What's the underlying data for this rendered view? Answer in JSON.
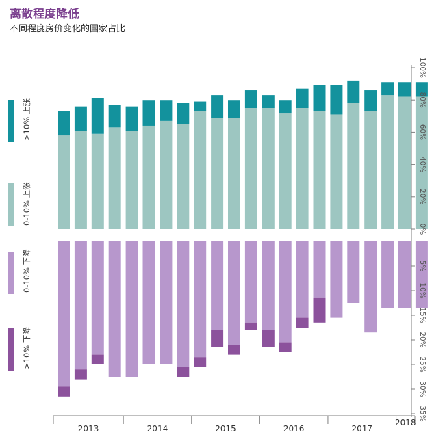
{
  "title": "离散程度降低",
  "subtitle": "不同程度房价变化的国家占比",
  "colors": {
    "rise_0_10": "#9dc6c1",
    "rise_gt10": "#13929d",
    "fall_0_10": "#b797cc",
    "fall_gt10": "#8c529c",
    "axis": "#7f7f7f",
    "title": "#7a3f8e"
  },
  "legend": {
    "rise_gt10": {
      "range": ">10%",
      "dir": "上涨"
    },
    "rise_0_10": {
      "range": "0-10%",
      "dir": "上涨"
    },
    "fall_0_10": {
      "range": "0-10%",
      "dir": "下降"
    },
    "fall_gt10": {
      "range": ">10%",
      "dir": "下降"
    }
  },
  "chart_data": {
    "type": "bar",
    "stacked": true,
    "title": "离散程度降低",
    "subtitle": "不同程度房价变化的国家占比",
    "x_labels": [
      "2013",
      "2014",
      "2015",
      "2016",
      "2017",
      "2018"
    ],
    "x_label_groups": [
      4,
      4,
      4,
      4,
      4,
      2
    ],
    "bar_count": 22,
    "y_ticks_upper": [
      "0%",
      "20%",
      "40%",
      "60%",
      "80%",
      "100%"
    ],
    "y_ticks_lower": [
      "0%",
      "5%",
      "10%",
      "15%",
      "20%",
      "25%",
      "30%",
      "35%"
    ],
    "ylim_upper": [
      0,
      100
    ],
    "ylim_lower": [
      0,
      35
    ],
    "series": [
      {
        "name": "0-10% 上涨",
        "values": [
          58,
          61,
          59,
          63,
          61,
          64,
          67,
          65,
          73,
          69,
          69,
          75,
          75,
          72,
          75,
          73,
          71,
          78,
          73,
          83,
          82,
          82
        ]
      },
      {
        "name": ">10% 上涨",
        "values": [
          15,
          15,
          22,
          14,
          15,
          16,
          13,
          13,
          6,
          14,
          11,
          11,
          8,
          8,
          12,
          16,
          18,
          14,
          13,
          8,
          9,
          9
        ]
      },
      {
        "name": "0-10% 下降",
        "values": [
          29.5,
          26,
          23,
          27.5,
          27.5,
          25,
          25,
          25.5,
          23.5,
          18,
          21,
          16.5,
          18,
          20.5,
          15.5,
          11.5,
          15.5,
          12.5,
          18.5,
          13.5,
          13.5,
          13.5
        ]
      },
      {
        "name": ">10% 下降",
        "values": [
          2,
          2,
          2,
          0,
          0,
          0,
          0,
          2,
          2,
          3.5,
          2,
          1.5,
          3.5,
          2,
          2,
          5,
          0,
          0,
          0,
          0,
          0,
          0
        ]
      }
    ]
  }
}
